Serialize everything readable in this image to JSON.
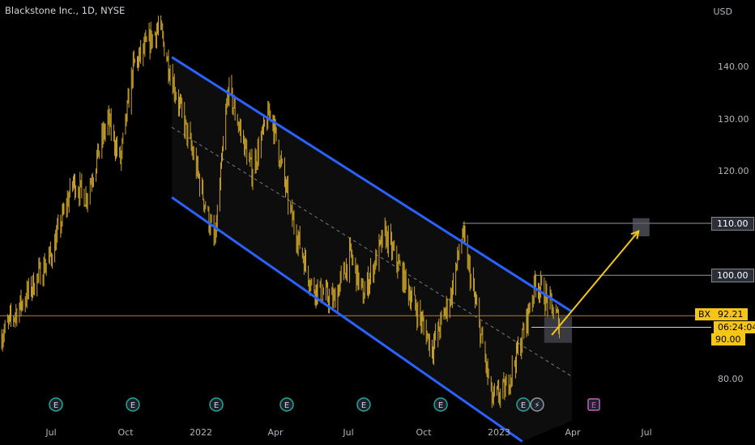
{
  "header": {
    "title": "Blackstone Inc., 1D, NYSE",
    "currency": "USD"
  },
  "y_axis": {
    "ticks": [
      {
        "label": "140.00",
        "value": 140
      },
      {
        "label": "130.00",
        "value": 130
      },
      {
        "label": "120.00",
        "value": 120
      },
      {
        "label": "80.00",
        "value": 80
      }
    ]
  },
  "x_axis": {
    "ticks": [
      "Jul",
      "Oct",
      "2022",
      "Apr",
      "Jul",
      "Oct",
      "2023",
      "Apr",
      "Jul"
    ]
  },
  "levels": {
    "l110": {
      "label": "110.00",
      "value": 110
    },
    "l100": {
      "label": "100.00",
      "value": 100
    },
    "l90": {
      "label": "90.00",
      "value": 90
    }
  },
  "last_price": {
    "ticker": "BX",
    "value": "92.21",
    "countdown": "06:24:04"
  },
  "events": [
    {
      "type": "earnings",
      "glyph": "E",
      "style": "past"
    },
    {
      "type": "earnings",
      "glyph": "E",
      "style": "past"
    },
    {
      "type": "earnings",
      "glyph": "E",
      "style": "past"
    },
    {
      "type": "earnings",
      "glyph": "E",
      "style": "past"
    },
    {
      "type": "earnings",
      "glyph": "E",
      "style": "past"
    },
    {
      "type": "earnings",
      "glyph": "E",
      "style": "past"
    },
    {
      "type": "earnings",
      "glyph": "E",
      "style": "past"
    },
    {
      "type": "split",
      "glyph": "⚡",
      "style": "bolt"
    },
    {
      "type": "earnings",
      "glyph": "E",
      "style": "future"
    }
  ],
  "colors": {
    "candle": "#c9a227",
    "channel": "#2962ff",
    "arrow": "#f5c518",
    "level_line": "#9598a1",
    "last_price_line": "#c07a2a"
  },
  "chart_data": {
    "type": "candlestick",
    "title": "Blackstone Inc., 1D, NYSE",
    "x_range": [
      "2021-05-15",
      "2023-08-20"
    ],
    "y_range": [
      72,
      153
    ],
    "anchors": [
      [
        "2021-05-15",
        88
      ],
      [
        "2021-06-15",
        96
      ],
      [
        "2021-07-15",
        104
      ],
      [
        "2021-08-10",
        118
      ],
      [
        "2021-08-25",
        115
      ],
      [
        "2021-09-20",
        130
      ],
      [
        "2021-10-05",
        122
      ],
      [
        "2021-10-20",
        140
      ],
      [
        "2021-11-20",
        148
      ],
      [
        "2021-12-05",
        138
      ],
      [
        "2022-01-01",
        122
      ],
      [
        "2022-01-25",
        106
      ],
      [
        "2022-02-10",
        136
      ],
      [
        "2022-03-10",
        120
      ],
      [
        "2022-04-01",
        132
      ],
      [
        "2022-04-25",
        112
      ],
      [
        "2022-05-20",
        98
      ],
      [
        "2022-06-15",
        95
      ],
      [
        "2022-07-05",
        104
      ],
      [
        "2022-07-20",
        96
      ],
      [
        "2022-08-15",
        108
      ],
      [
        "2022-09-15",
        96
      ],
      [
        "2022-10-10",
        86
      ],
      [
        "2022-11-01",
        96
      ],
      [
        "2022-11-15",
        108
      ],
      [
        "2022-12-01",
        94
      ],
      [
        "2022-12-20",
        76
      ],
      [
        "2023-01-05",
        78
      ],
      [
        "2023-01-25",
        88
      ],
      [
        "2023-02-10",
        99
      ],
      [
        "2023-02-28",
        94
      ],
      [
        "2023-03-10",
        91
      ]
    ],
    "channel_upper": [
      [
        "2021-12-05",
        142
      ],
      [
        "2023-03-25",
        93
      ]
    ],
    "channel_lower": [
      [
        "2021-12-05",
        115
      ],
      [
        "2023-01-25",
        68
      ]
    ],
    "channel_mid": [
      [
        "2021-12-05",
        128.5
      ],
      [
        "2023-03-25",
        80.5
      ]
    ],
    "channel_shade_end": "2023-03-25",
    "level_110_from": "2022-11-15",
    "level_100_from": "2023-02-10",
    "level_90_from": "2023-02-05",
    "target_box": {
      "from": "2023-06-05",
      "to": "2023-06-25",
      "low": 107.5,
      "high": 111.0
    },
    "entry_box": {
      "from": "2023-02-20",
      "to": "2023-03-25",
      "low": 87.0,
      "high": 92.0
    },
    "arrow": {
      "from": [
        "2023-03-01",
        88.5
      ],
      "to": [
        "2023-06-12",
        108.5
      ]
    },
    "last_price": 92.21,
    "event_dates": [
      "2021-07-20",
      "2021-10-20",
      "2022-01-27",
      "2022-04-20",
      "2022-07-21",
      "2022-10-20",
      "2023-01-26",
      "2023-02-12",
      "2023-04-20"
    ]
  }
}
